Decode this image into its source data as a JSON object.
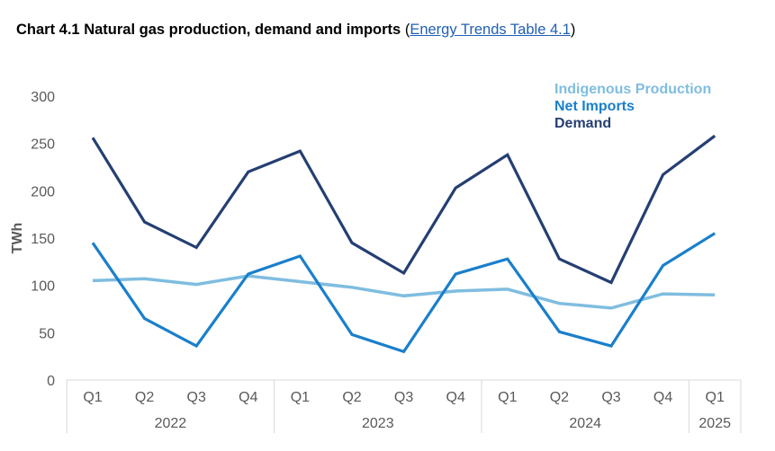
{
  "title": {
    "text": "Chart 4.1 Natural gas production, demand and imports",
    "open_paren": "(",
    "link_text": "Energy Trends Table 4.1",
    "close_paren": ")"
  },
  "chart_data": {
    "type": "line",
    "title": "Chart 4.1 Natural gas production, demand and imports",
    "xlabel": "",
    "ylabel": "TWh",
    "ylim": [
      0,
      300
    ],
    "yticks": [
      0,
      50,
      100,
      150,
      200,
      250,
      300
    ],
    "grid": false,
    "legend_position": "top-right",
    "categories": [
      "Q1",
      "Q2",
      "Q3",
      "Q4",
      "Q1",
      "Q2",
      "Q3",
      "Q4",
      "Q1",
      "Q2",
      "Q3",
      "Q4",
      "Q1"
    ],
    "year_groups": [
      {
        "label": "2022",
        "count": 4
      },
      {
        "label": "2023",
        "count": 4
      },
      {
        "label": "2024",
        "count": 4
      },
      {
        "label": "2025",
        "count": 1
      }
    ],
    "series": [
      {
        "name": "Indigenous Production",
        "color": "#7fbde0",
        "values": [
          105,
          107,
          101,
          110,
          104,
          98,
          89,
          94,
          96,
          81,
          76,
          91,
          90
        ]
      },
      {
        "name": "Net Imports",
        "color": "#1a7fcb",
        "values": [
          145,
          65,
          36,
          112,
          131,
          48,
          30,
          112,
          128,
          51,
          36,
          121,
          155
        ]
      },
      {
        "name": "Demand",
        "color": "#253f73",
        "values": [
          256,
          167,
          140,
          220,
          242,
          145,
          113,
          203,
          238,
          128,
          103,
          217,
          258
        ]
      }
    ]
  }
}
